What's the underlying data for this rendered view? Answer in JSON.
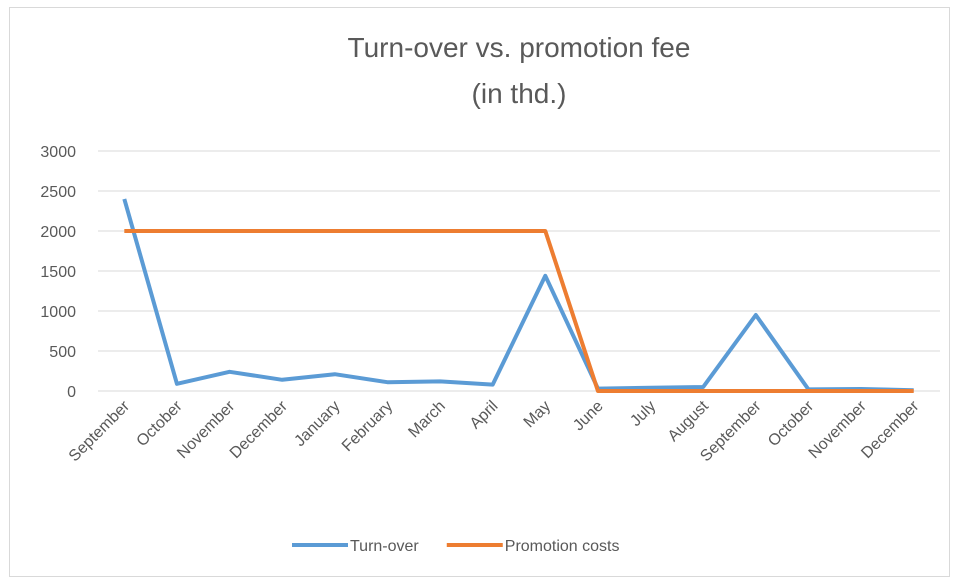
{
  "chart_data": {
    "type": "line",
    "title": "Turn-over vs. promotion fee",
    "subtitle": "(in thd.)",
    "categories": [
      "September",
      "October",
      "November",
      "December",
      "January",
      "February",
      "March",
      "April",
      "May",
      "June",
      "July",
      "August",
      "September",
      "October",
      "November",
      "December"
    ],
    "series": [
      {
        "name": "Turn-over",
        "color": "#5b9bd5",
        "values": [
          2400,
          90,
          240,
          140,
          210,
          110,
          120,
          80,
          1440,
          30,
          40,
          50,
          950,
          20,
          25,
          10
        ]
      },
      {
        "name": "Promotion costs",
        "color": "#ed7d31",
        "values": [
          2000,
          2000,
          2000,
          2000,
          2000,
          2000,
          2000,
          2000,
          2000,
          0,
          0,
          0,
          0,
          0,
          0,
          0
        ]
      }
    ],
    "ylim": [
      0,
      3000
    ],
    "yticks": [
      0,
      500,
      1000,
      1500,
      2000,
      2500,
      3000
    ],
    "grid": true,
    "legend": "bottom"
  }
}
